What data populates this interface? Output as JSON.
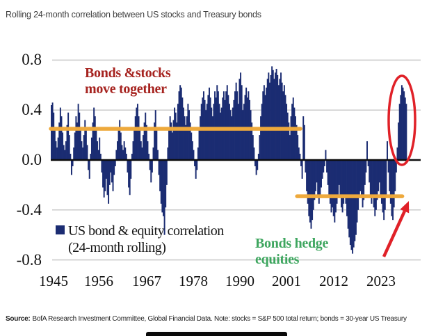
{
  "header": {
    "title": "Rolling 24-month correlation between US stocks and Treasury bonds"
  },
  "source": {
    "label": "Source:",
    "text": "BofA Research Investment Committee, Global Financial Data. Note: stocks = S&P 500 total return; bonds = 30-year US Treasury"
  },
  "chart_data": {
    "type": "bar",
    "title": "Rolling 24-month correlation between US stocks and Treasury bonds",
    "xlabel": "",
    "ylabel": "",
    "ylim": [
      -0.8,
      0.8
    ],
    "grid": "horizontal",
    "gridline_values": [
      0.8,
      0.4,
      -0.4,
      -0.8
    ],
    "yticks": [
      {
        "label": "0.8",
        "value": 0.8
      },
      {
        "label": "0.4",
        "value": 0.4
      },
      {
        "label": "0.0",
        "value": 0.0
      },
      {
        "label": "-0.4",
        "value": -0.4
      },
      {
        "label": "-0.8",
        "value": -0.8
      }
    ],
    "xticks": [
      "1945",
      "1956",
      "1967",
      "1978",
      "1990",
      "2001",
      "2012",
      "2023"
    ],
    "series_name": "US bond & equity correlation (24-month rolling)",
    "start_year": 1945,
    "frequency": "quarterly",
    "values": [
      0.44,
      0.46,
      0.38,
      0.26,
      0.15,
      0.1,
      0.18,
      0.3,
      0.42,
      0.35,
      0.22,
      0.12,
      0.08,
      0.15,
      0.28,
      0.38,
      0.2,
      0.05,
      -0.12,
      -0.05,
      0.1,
      0.22,
      0.35,
      0.3,
      0.45,
      0.38,
      0.25,
      0.15,
      0.1,
      0.2,
      0.32,
      0.24,
      0.12,
      -0.08,
      -0.15,
      0.05,
      0.18,
      0.3,
      0.42,
      0.35,
      0.25,
      0.15,
      0.08,
      0.18,
      0.05,
      -0.1,
      -0.22,
      -0.3,
      -0.25,
      -0.15,
      -0.28,
      -0.35,
      -0.2,
      -0.1,
      -0.18,
      -0.25,
      -0.12,
      -0.05,
      0.08,
      0.15,
      0.25,
      0.32,
      0.22,
      0.12,
      0.08,
      0.15,
      0.1,
      0.05,
      -0.1,
      -0.22,
      -0.28,
      -0.15,
      0.05,
      0.15,
      0.25,
      0.35,
      0.42,
      0.45,
      0.35,
      0.25,
      0.15,
      0.1,
      0.2,
      0.3,
      0.38,
      0.28,
      0.15,
      0.05,
      -0.08,
      -0.18,
      -0.1,
      0.1,
      0.3,
      0.4,
      0.25,
      0.08,
      -0.12,
      -0.25,
      -0.35,
      -0.42,
      -0.45,
      -0.6,
      -0.38,
      -0.2,
      0.1,
      0.25,
      0.35,
      0.3,
      0.22,
      0.32,
      0.42,
      0.38,
      0.3,
      0.45,
      0.55,
      0.6,
      0.58,
      0.5,
      0.42,
      0.35,
      0.28,
      0.35,
      0.45,
      0.4,
      0.3,
      0.22,
      0.15,
      0.08,
      -0.05,
      -0.15,
      -0.08,
      0.1,
      0.25,
      0.35,
      0.45,
      0.5,
      0.55,
      0.48,
      0.4,
      0.45,
      0.52,
      0.58,
      0.5,
      0.42,
      0.35,
      0.45,
      0.55,
      0.5,
      0.6,
      0.55,
      0.45,
      0.38,
      0.42,
      0.5,
      0.55,
      0.48,
      0.55,
      0.6,
      0.52,
      0.45,
      0.4,
      0.35,
      0.42,
      0.48,
      0.55,
      0.62,
      0.55,
      0.45,
      0.65,
      0.7,
      0.6,
      0.4,
      0.45,
      0.52,
      0.58,
      0.5,
      0.55,
      0.48,
      0.4,
      0.3,
      0.2,
      0.1,
      -0.05,
      -0.12,
      -0.08,
      0.05,
      0.2,
      0.35,
      0.45,
      0.55,
      0.6,
      0.52,
      0.58,
      0.65,
      0.7,
      0.62,
      0.68,
      0.75,
      0.72,
      0.65,
      0.7,
      0.73,
      0.68,
      0.6,
      0.65,
      0.7,
      0.62,
      0.55,
      0.6,
      0.52,
      0.45,
      0.38,
      0.3,
      0.2,
      0.35,
      0.45,
      0.5,
      0.42,
      0.35,
      0.28,
      0.2,
      0.1,
      0.05,
      -0.05,
      -0.15,
      0.35,
      0.28,
      -0.1,
      -0.25,
      -0.35,
      -0.45,
      -0.5,
      -0.55,
      -0.48,
      -0.4,
      -0.32,
      -0.25,
      -0.18,
      -0.28,
      -0.35,
      -0.3,
      -0.22,
      -0.15,
      -0.1,
      -0.05,
      0.08,
      -0.1,
      -0.2,
      -0.28,
      -0.35,
      -0.42,
      -0.38,
      -0.45,
      -0.5,
      -0.42,
      -0.35,
      -0.28,
      -0.2,
      -0.3,
      -0.38,
      -0.42,
      -0.35,
      -0.28,
      -0.35,
      -0.45,
      -0.55,
      -0.62,
      -0.68,
      -0.72,
      -0.75,
      -0.7,
      -0.65,
      -0.6,
      -0.5,
      -0.4,
      -0.3,
      -0.25,
      -0.3,
      -0.38,
      -0.32,
      -0.2,
      -0.1,
      0.15,
      -0.05,
      -0.18,
      -0.28,
      -0.35,
      -0.3,
      -0.38,
      -0.45,
      -0.4,
      -0.32,
      -0.25,
      -0.18,
      -0.28,
      -0.35,
      -0.42,
      -0.48,
      -0.4,
      -0.3,
      0.15,
      -0.1,
      -0.25,
      -0.35,
      -0.45,
      -0.48,
      -0.38,
      -0.25,
      -0.1,
      0.1,
      0.3,
      0.45,
      0.52,
      0.6,
      0.58,
      0.55,
      0.5,
      0.45
    ],
    "legend": {
      "line1": "US bond & equity correlation",
      "line2": "(24-month rolling)",
      "position": "bottom-left-inside"
    },
    "annotations": {
      "positive_regime": {
        "line1": "Bonds &stocks",
        "line2": "move together",
        "color": "#a6231f"
      },
      "negative_regime": {
        "line1": "Bonds hedge",
        "line2": "equities",
        "color": "#3ea65f"
      },
      "avg_lines": [
        {
          "value": 0.25,
          "from_index": 0,
          "to_index": 223,
          "color": "#eea93c"
        },
        {
          "value": -0.29,
          "from_index": 220,
          "to_index": 314,
          "color": "#eea93c"
        }
      ],
      "highlight": "red ellipse and red arrow marking the 2022-2024 spike in correlation"
    },
    "colors": {
      "bar": "#1b2c72",
      "gridline": "#c9c9c9",
      "zero_line": "#0d0d0d",
      "highlight_red": "#e02128"
    }
  }
}
